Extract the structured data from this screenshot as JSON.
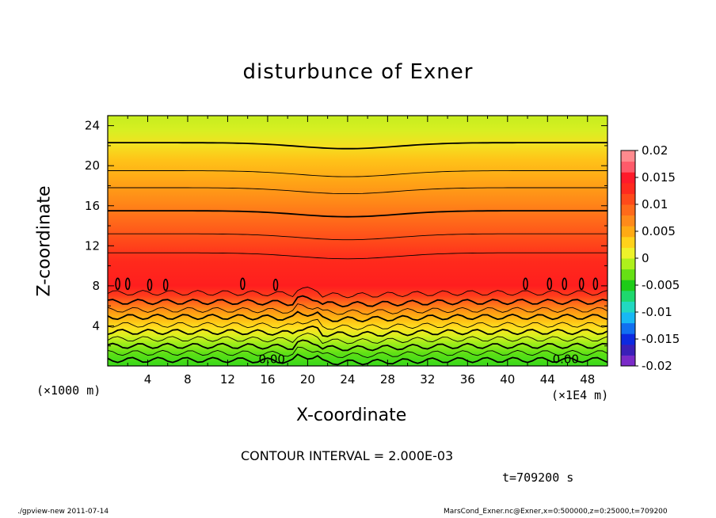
{
  "chart_data": {
    "type": "contour",
    "title": "disturbunce of Exner",
    "xlabel": "X-coordinate",
    "ylabel": "Z-coordinate",
    "x_unit_left": "(×1000 m)",
    "x_unit_right": "(×1E4 m)",
    "xlim": [
      0,
      50
    ],
    "ylim": [
      0,
      25
    ],
    "xticks": [
      "4",
      "8",
      "12",
      "16",
      "20",
      "24",
      "28",
      "32",
      "36",
      "40",
      "44",
      "48"
    ],
    "yticks": [
      "4",
      "8",
      "12",
      "16",
      "20",
      "24"
    ],
    "colorbar": {
      "ticks": [
        "0.02",
        "0.015",
        "0.01",
        "0.005",
        "0",
        "-0.005",
        "-0.01",
        "-0.015",
        "-0.02"
      ],
      "range": [
        -0.02,
        0.02
      ],
      "colors": [
        "#7a2ac8",
        "#3a1fb8",
        "#0d2ae0",
        "#1170f0",
        "#18b8f4",
        "#22d8c0",
        "#1ed86e",
        "#1ecc18",
        "#66e014",
        "#aef01c",
        "#eef22a",
        "#ffd21a",
        "#ffaa14",
        "#ff8a1a",
        "#ff6a1a",
        "#ff4a1a",
        "#ff2a1e",
        "#ff1a2a",
        "#ff5a6a",
        "#ff8a8e"
      ]
    },
    "contour_labels": [
      "0.00",
      "0.00"
    ],
    "contour_interval": "2.000E-03"
  },
  "annotations": {
    "contour_interval": "CONTOUR INTERVAL = 2.000E-03",
    "time": "t=709200 s",
    "footer_left": "./gpview-new   2011-07-14",
    "footer_right": "MarsCond_Exner.nc@Exner,x=0:500000,z=0:25000,t=709200"
  }
}
